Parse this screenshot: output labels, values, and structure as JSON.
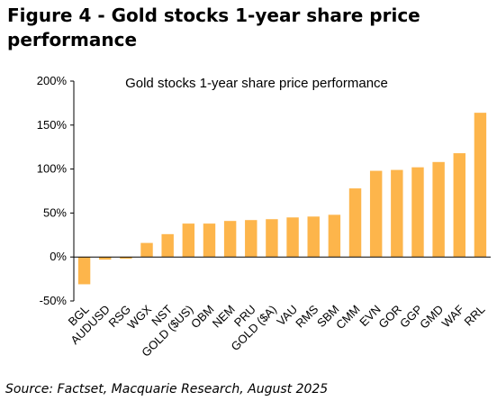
{
  "figure": {
    "heading": "Figure 4 - Gold stocks 1-year share price performance",
    "source": "Source: Factset, Macquarie Research, August 2025"
  },
  "chart_data": {
    "type": "bar",
    "title": "Gold stocks 1-year share price performance",
    "categories": [
      "BGL",
      "AUDUSD",
      "RSG",
      "WGX",
      "NST",
      "GOLD ($US)",
      "OBM",
      "NEM",
      "PRU",
      "GOLD ($A)",
      "VAU",
      "RMS",
      "SBM",
      "CMM",
      "EVN",
      "GOR",
      "GGP",
      "GMD",
      "WAF",
      "RRL"
    ],
    "values": [
      -31,
      -3,
      -2,
      16,
      26,
      38,
      38,
      41,
      42,
      43,
      45,
      46,
      48,
      78,
      98,
      99,
      102,
      108,
      118,
      164
    ],
    "ylim": [
      -50,
      200
    ],
    "yticks": [
      -50,
      0,
      50,
      100,
      150,
      200
    ],
    "ytick_labels": [
      "-50%",
      "0%",
      "50%",
      "100%",
      "150%",
      "200%"
    ],
    "xlabel": "",
    "ylabel": "",
    "bar_color": "#FDB54B",
    "grid": false,
    "legend": "none"
  }
}
